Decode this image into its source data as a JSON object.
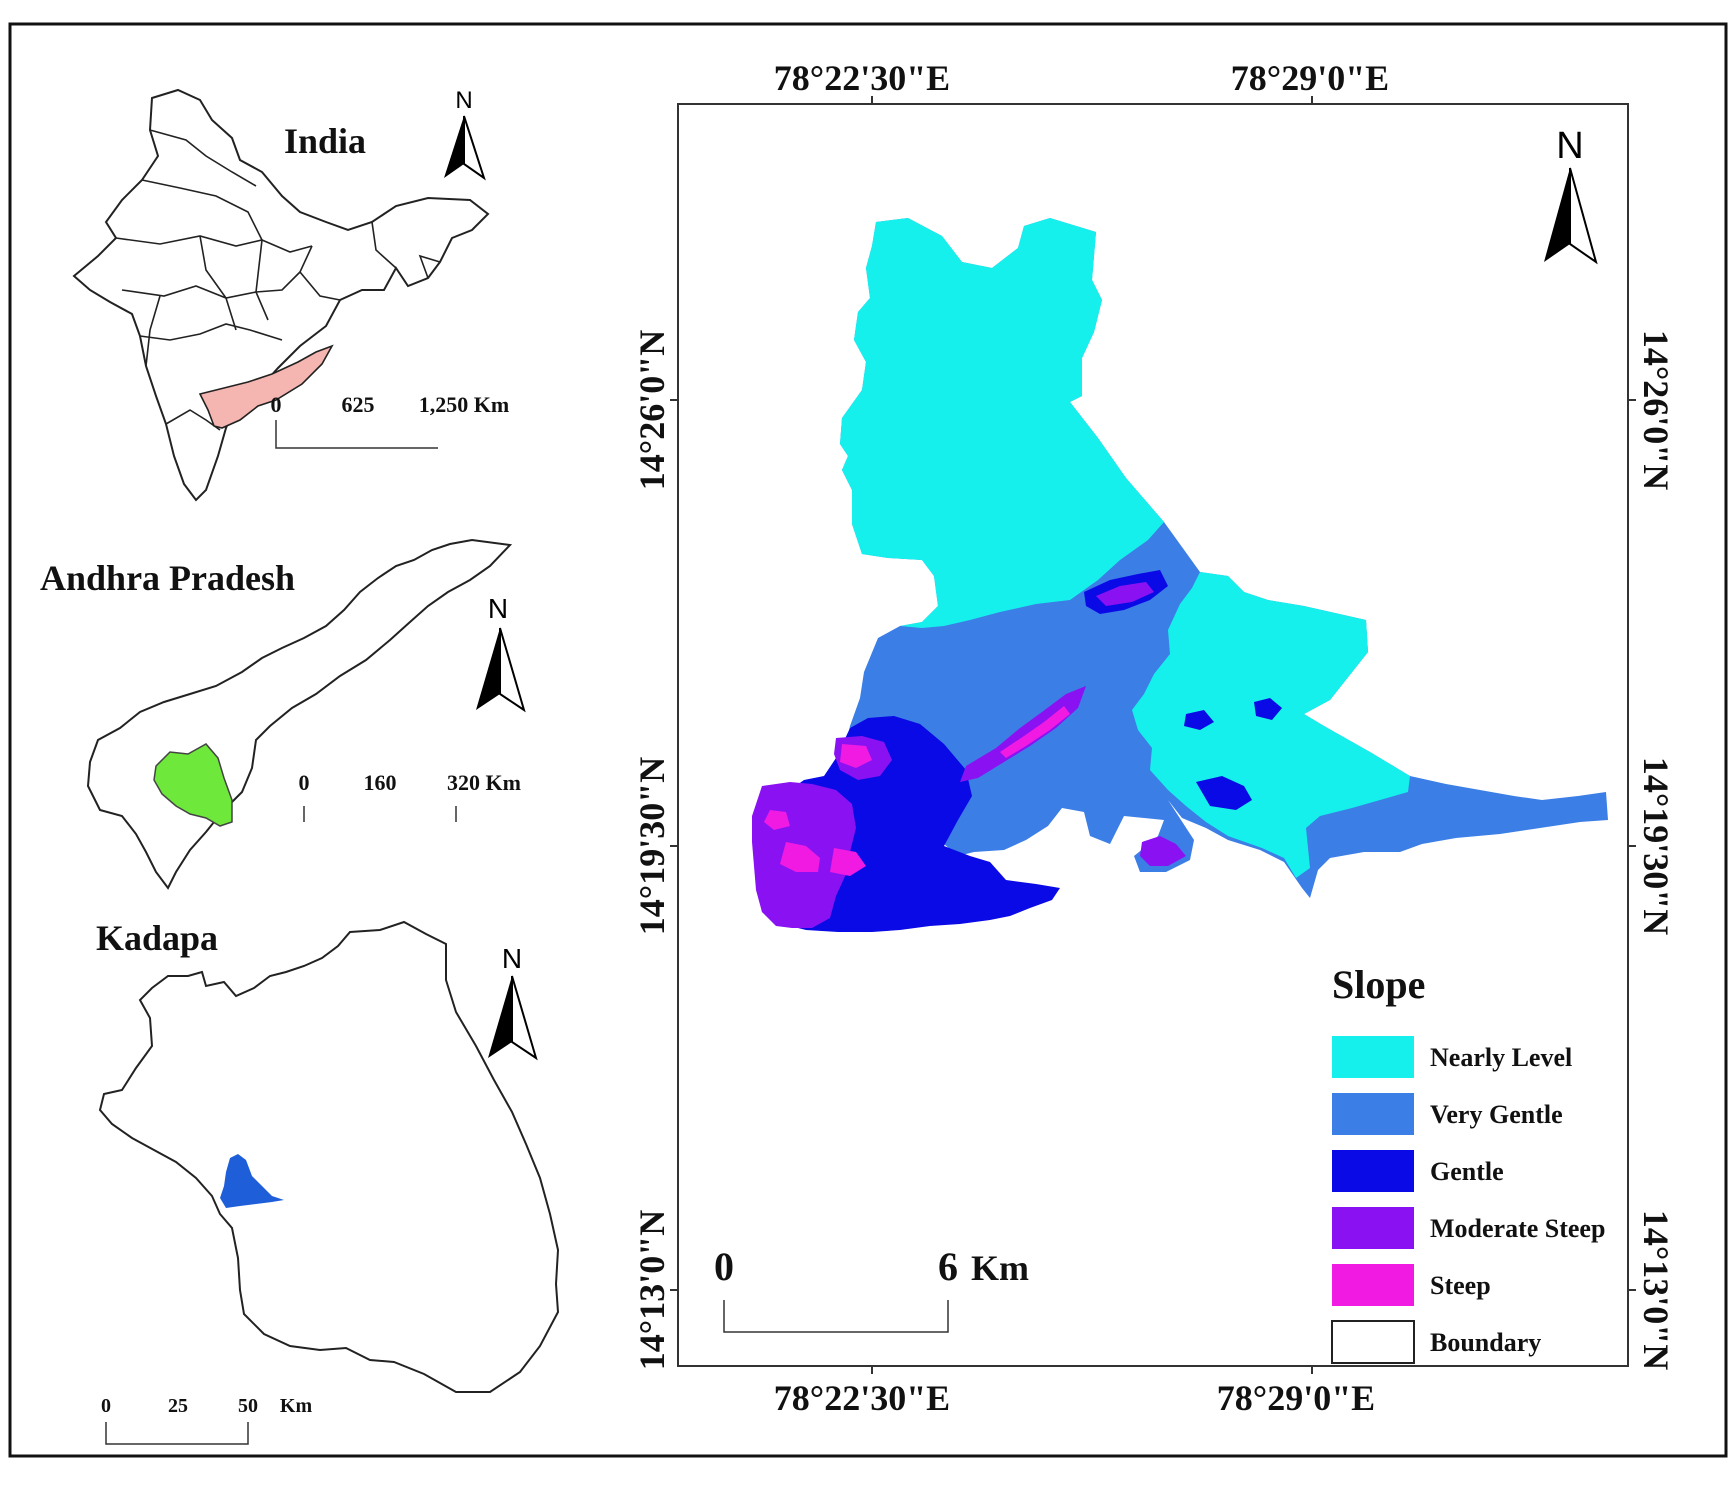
{
  "colors": {
    "nearly_level": "#16f0ec",
    "very_gentle": "#3b7ee6",
    "gentle": "#0a0ae6",
    "moderate_steep": "#8a12f2",
    "steep": "#f01ae2",
    "boundary": "#ffffff",
    "andhra_highlight": "#f5b5b0",
    "kadapa_highlight": "#6ee83a",
    "study_area_highlight": "#1e5ed8"
  },
  "insets": {
    "india": {
      "title": "India",
      "north": "N",
      "scale": {
        "ticks": [
          "0",
          "625",
          "1,250 Km"
        ]
      }
    },
    "andhra": {
      "title": "Andhra Pradesh",
      "north": "N",
      "scale": {
        "ticks": [
          "0",
          "160",
          "320 Km"
        ]
      }
    },
    "kadapa": {
      "title": "Kadapa",
      "north": "N",
      "scale": {
        "ticks": [
          "0",
          "25",
          "50",
          "Km"
        ]
      }
    }
  },
  "main_map": {
    "north": "N",
    "top_ticks": [
      "78°22'30\"E",
      "78°29'0\"E"
    ],
    "bottom_ticks": [
      "78°22'30\"E",
      "78°29'0\"E"
    ],
    "left_ticks": [
      "14°26'0\"N",
      "14°19'30\"N",
      "14°13'0\"N"
    ],
    "right_ticks": [
      "14°26'0\"N",
      "14°19'30\"N",
      "14°13'0\"N"
    ],
    "scale": {
      "start": "0",
      "end": "6",
      "unit": "Km"
    },
    "legend": {
      "title": "Slope",
      "items": [
        {
          "label": "Nearly Level",
          "color": "#16f0ec"
        },
        {
          "label": "Very Gentle",
          "color": "#3b7ee6"
        },
        {
          "label": "Gentle",
          "color": "#0a0ae6"
        },
        {
          "label": "Moderate Steep",
          "color": "#8a12f2"
        },
        {
          "label": "Steep",
          "color": "#f01ae2"
        },
        {
          "label": "Boundary",
          "color": "#ffffff"
        }
      ]
    }
  }
}
